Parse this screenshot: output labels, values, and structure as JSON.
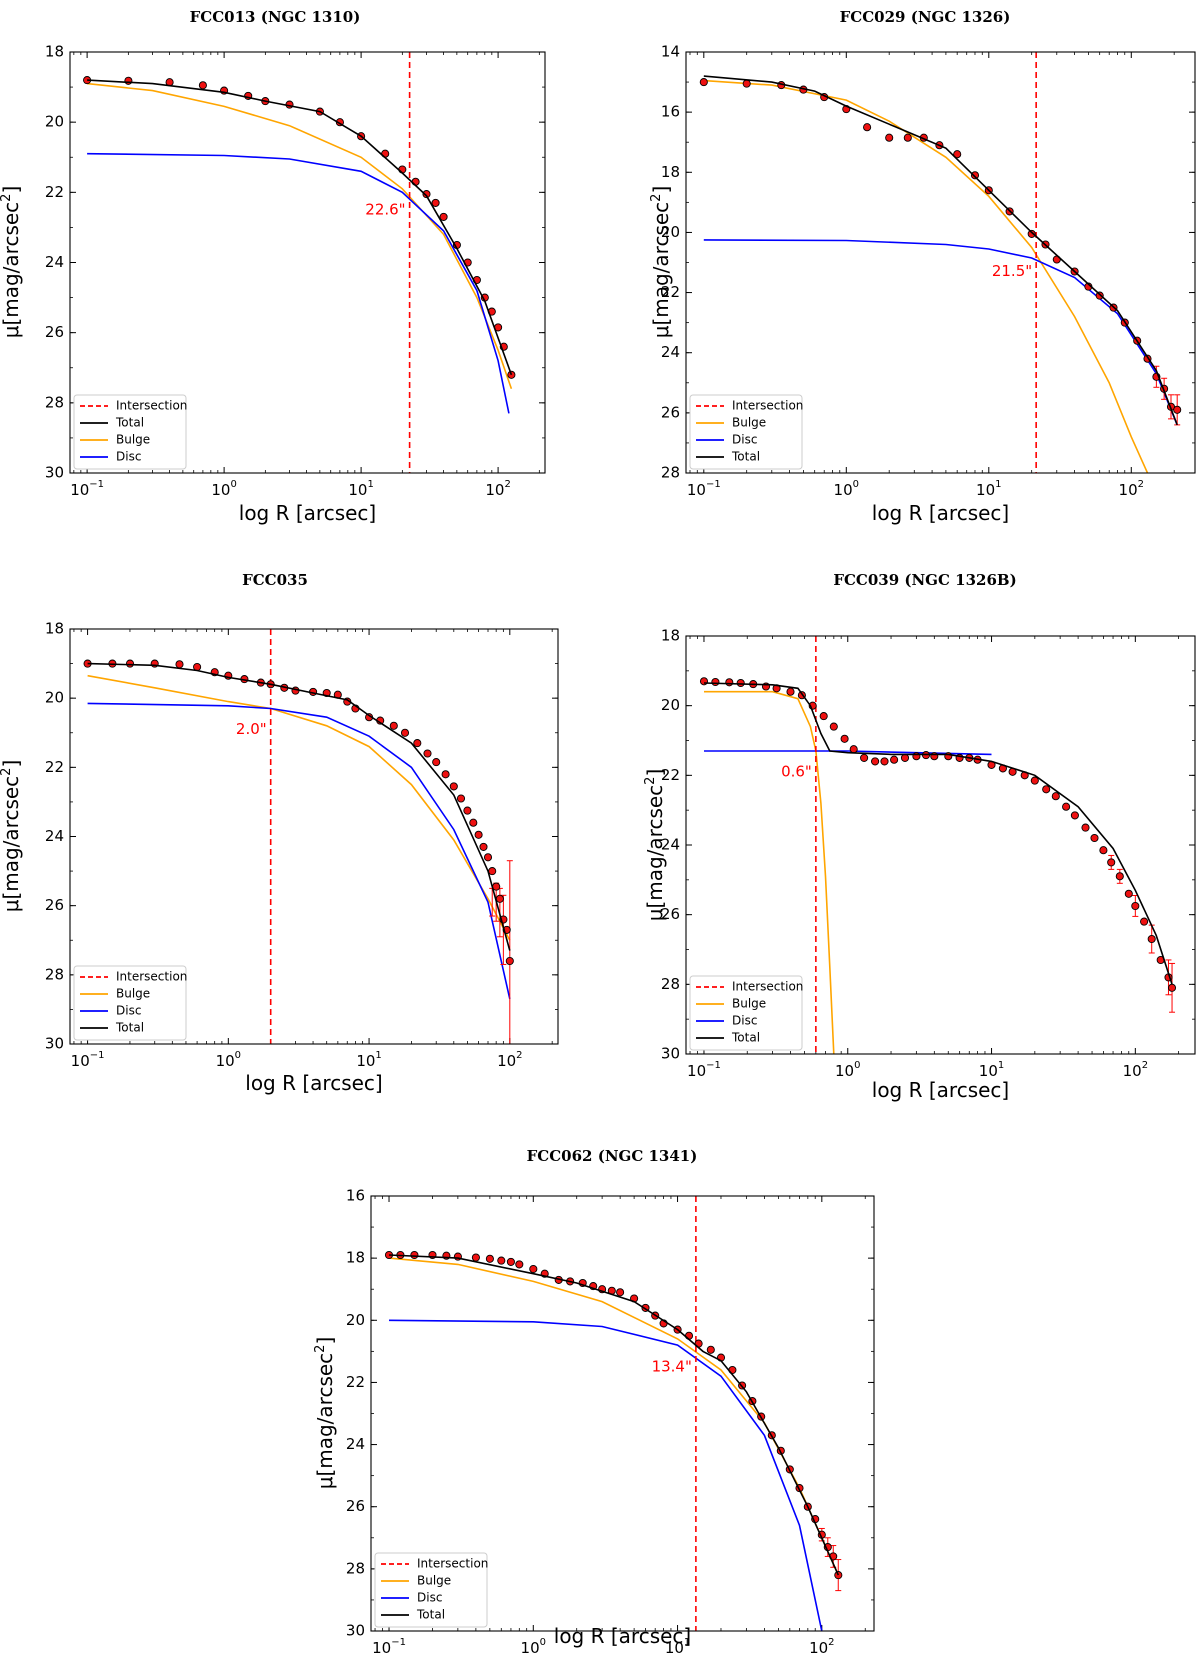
{
  "figure": {
    "x_label": "log R [arcsec]",
    "y_label": "μ[mag/arcsec",
    "y_label_sup": "2",
    "y_label_close": "]",
    "colors": {
      "intersection": "#ff0000",
      "total": "#000000",
      "bulge": "#ffa500",
      "disc": "#0000ff",
      "points": "#ee1111"
    }
  },
  "chart_data": [
    {
      "type": "line",
      "title": "FCC013 (NGC 1310)",
      "xscale": "log",
      "xlim": [
        0.075,
        220
      ],
      "ylim": [
        30,
        18
      ],
      "yticks": [
        18,
        20,
        22,
        24,
        26,
        28,
        30
      ],
      "xticks": [
        0.1,
        1,
        10,
        100
      ],
      "xtick_labels": [
        {
          "base": "10",
          "exp": "−1"
        },
        {
          "base": "10",
          "exp": "0"
        },
        {
          "base": "10",
          "exp": "1"
        },
        {
          "base": "10",
          "exp": "2"
        }
      ],
      "legend_position": "lower-left",
      "legend": [
        "Intersection",
        "Total",
        "Bulge",
        "Disc"
      ],
      "intersection": {
        "r": 22.6,
        "label": "22.6\"",
        "label_mu": 22.5
      },
      "total": {
        "r": [
          0.1,
          0.3,
          1,
          2,
          5,
          10,
          20,
          30,
          50,
          80,
          125
        ],
        "mu": [
          18.8,
          18.9,
          19.15,
          19.4,
          19.7,
          20.4,
          21.45,
          22.1,
          23.6,
          25.1,
          27.2
        ]
      },
      "bulge": {
        "r": [
          0.1,
          0.3,
          1,
          3,
          10,
          20,
          40,
          70,
          100,
          125
        ],
        "mu": [
          18.9,
          19.1,
          19.55,
          20.1,
          21.0,
          21.9,
          23.2,
          25.0,
          26.5,
          27.6
        ]
      },
      "disc": {
        "r": [
          0.1,
          1,
          3,
          10,
          20,
          40,
          70,
          100,
          120
        ],
        "mu": [
          20.9,
          20.95,
          21.05,
          21.4,
          22.0,
          23.1,
          24.8,
          26.8,
          28.3
        ]
      },
      "points": {
        "r": [
          0.1,
          0.2,
          0.4,
          0.7,
          1,
          1.5,
          2,
          3,
          5,
          7,
          10,
          15,
          20,
          25,
          30,
          35,
          40,
          50,
          60,
          70,
          80,
          90,
          100,
          110,
          125
        ],
        "mu": [
          18.8,
          18.82,
          18.86,
          18.95,
          19.1,
          19.25,
          19.4,
          19.5,
          19.7,
          20.0,
          20.4,
          20.9,
          21.35,
          21.7,
          22.05,
          22.3,
          22.7,
          23.5,
          24.0,
          24.5,
          25.0,
          25.4,
          25.85,
          26.4,
          27.2
        ]
      },
      "error_bars": []
    },
    {
      "type": "line",
      "title": "FCC029 (NGC 1326)",
      "xscale": "log",
      "xlim": [
        0.075,
        280
      ],
      "ylim": [
        28,
        14
      ],
      "yticks": [
        14,
        16,
        18,
        20,
        22,
        24,
        26,
        28
      ],
      "xticks": [
        0.1,
        1,
        10,
        100
      ],
      "xtick_labels": [
        {
          "base": "10",
          "exp": "−1"
        },
        {
          "base": "10",
          "exp": "0"
        },
        {
          "base": "10",
          "exp": "1"
        },
        {
          "base": "10",
          "exp": "2"
        }
      ],
      "legend_position": "lower-left",
      "legend": [
        "Intersection",
        "Bulge",
        "Disc",
        "Total"
      ],
      "intersection": {
        "r": 21.5,
        "label": "21.5\"",
        "label_mu": 21.3
      },
      "total": {
        "r": [
          0.1,
          0.3,
          0.6,
          1,
          2,
          3,
          5,
          10,
          20,
          40,
          80,
          150,
          210
        ],
        "mu": [
          14.8,
          15.0,
          15.3,
          15.8,
          16.4,
          16.75,
          17.2,
          18.6,
          20.0,
          21.3,
          22.6,
          24.6,
          26.4
        ]
      },
      "bulge": {
        "r": [
          0.1,
          0.3,
          1,
          2,
          5,
          10,
          20,
          40,
          70,
          100,
          130
        ],
        "mu": [
          14.95,
          15.1,
          15.6,
          16.3,
          17.5,
          18.8,
          20.5,
          22.8,
          25.0,
          26.8,
          28.0
        ]
      },
      "disc": {
        "r": [
          0.1,
          1,
          5,
          10,
          20,
          40,
          80,
          150,
          210
        ],
        "mu": [
          20.25,
          20.27,
          20.4,
          20.55,
          20.85,
          21.5,
          22.7,
          24.7,
          26.4
        ]
      },
      "points": {
        "r": [
          0.1,
          0.2,
          0.35,
          0.5,
          0.7,
          1,
          1.4,
          2,
          2.7,
          3.5,
          4.5,
          6,
          8,
          10,
          14,
          20,
          25,
          30,
          40,
          50,
          60,
          75,
          90,
          110,
          130,
          150,
          170,
          190,
          210
        ],
        "mu": [
          15.0,
          15.05,
          15.1,
          15.25,
          15.5,
          15.9,
          16.5,
          16.85,
          16.85,
          16.85,
          17.1,
          17.4,
          18.1,
          18.6,
          19.3,
          20.05,
          20.4,
          20.9,
          21.3,
          21.8,
          22.1,
          22.5,
          23.0,
          23.6,
          24.2,
          24.8,
          25.2,
          25.8,
          25.9
        ]
      },
      "error_bars": [
        {
          "r": 150,
          "mu": 24.8,
          "err": 0.35
        },
        {
          "r": 170,
          "mu": 25.2,
          "err": 0.35
        },
        {
          "r": 190,
          "mu": 25.8,
          "err": 0.4
        },
        {
          "r": 210,
          "mu": 25.9,
          "err": 0.5
        }
      ]
    },
    {
      "type": "line",
      "title": "FCC035",
      "xscale": "log",
      "xlim": [
        0.075,
        220
      ],
      "ylim": [
        30,
        18
      ],
      "yticks": [
        18,
        20,
        22,
        24,
        26,
        28,
        30
      ],
      "xticks": [
        0.1,
        1,
        10,
        100
      ],
      "xtick_labels": [
        {
          "base": "10",
          "exp": "−1"
        },
        {
          "base": "10",
          "exp": "0"
        },
        {
          "base": "10",
          "exp": "1"
        },
        {
          "base": "10",
          "exp": "2"
        }
      ],
      "legend_position": "lower-left",
      "legend": [
        "Intersection",
        "Bulge",
        "Disc",
        "Total"
      ],
      "intersection": {
        "r": 2.0,
        "label": "2.0\"",
        "label_mu": 20.9
      },
      "total": {
        "r": [
          0.1,
          0.3,
          0.6,
          1,
          2,
          4,
          7,
          10,
          20,
          40,
          70,
          100
        ],
        "mu": [
          19.0,
          19.05,
          19.2,
          19.4,
          19.6,
          19.85,
          20.05,
          20.5,
          21.3,
          22.8,
          25.0,
          27.3
        ]
      },
      "bulge": {
        "r": [
          0.1,
          0.3,
          1,
          2,
          5,
          10,
          20,
          40,
          70,
          100
        ],
        "mu": [
          19.35,
          19.7,
          20.1,
          20.3,
          20.8,
          21.4,
          22.5,
          24.1,
          25.8,
          27.0
        ]
      },
      "disc": {
        "r": [
          0.1,
          1,
          2,
          5,
          10,
          20,
          40,
          70,
          100
        ],
        "mu": [
          20.15,
          20.22,
          20.3,
          20.55,
          21.1,
          22.0,
          23.8,
          25.9,
          28.7
        ]
      },
      "points": {
        "r": [
          0.1,
          0.15,
          0.2,
          0.3,
          0.45,
          0.6,
          0.8,
          1,
          1.3,
          1.7,
          2,
          2.5,
          3,
          4,
          5,
          6,
          7,
          8,
          10,
          12,
          15,
          18,
          22,
          26,
          30,
          35,
          40,
          45,
          50,
          55,
          60,
          65,
          70,
          75,
          80,
          85,
          90,
          95,
          100
        ],
        "mu": [
          19.0,
          19.0,
          19.0,
          19.0,
          19.02,
          19.1,
          19.25,
          19.35,
          19.45,
          19.55,
          19.6,
          19.7,
          19.78,
          19.82,
          19.85,
          19.9,
          20.1,
          20.3,
          20.55,
          20.65,
          20.8,
          21.0,
          21.3,
          21.6,
          21.85,
          22.2,
          22.55,
          22.9,
          23.25,
          23.6,
          23.95,
          24.3,
          24.6,
          25.0,
          25.45,
          25.8,
          26.4,
          26.7,
          27.6
        ]
      },
      "error_bars": [
        {
          "r": 75,
          "mu": 25.9,
          "err": 0.4
        },
        {
          "r": 80,
          "mu": 25.9,
          "err": 0.55
        },
        {
          "r": 85,
          "mu": 26.2,
          "err": 0.7
        },
        {
          "r": 90,
          "mu": 26.7,
          "err": 1.0
        },
        {
          "r": 100,
          "mu": 27.6,
          "err": 2.9
        }
      ]
    },
    {
      "type": "line",
      "title": "FCC039 (NGC 1326B)",
      "xscale": "log",
      "xlim": [
        0.075,
        260
      ],
      "ylim": [
        30,
        18
      ],
      "yticks": [
        18,
        20,
        22,
        24,
        26,
        28,
        30
      ],
      "xticks": [
        0.1,
        1,
        10,
        100
      ],
      "xtick_labels": [
        {
          "base": "10",
          "exp": "−1"
        },
        {
          "base": "10",
          "exp": "0"
        },
        {
          "base": "10",
          "exp": "1"
        },
        {
          "base": "10",
          "exp": "2"
        }
      ],
      "legend_position": "lower-left",
      "legend": [
        "Intersection",
        "Bulge",
        "Disc",
        "Total"
      ],
      "intersection": {
        "r": 0.6,
        "label": "0.6\"",
        "label_mu": 21.9
      },
      "total": {
        "r": [
          0.1,
          0.3,
          0.45,
          0.55,
          0.65,
          0.75,
          1,
          2,
          5,
          10,
          20,
          40,
          70,
          100,
          140,
          180
        ],
        "mu": [
          19.35,
          19.4,
          19.5,
          20.0,
          20.8,
          21.3,
          21.35,
          21.4,
          21.4,
          21.6,
          22.0,
          22.9,
          24.1,
          25.3,
          26.6,
          28.0
        ]
      },
      "bulge": {
        "r": [
          0.1,
          0.3,
          0.45,
          0.55,
          0.6,
          0.65,
          0.7,
          0.75,
          0.8
        ],
        "mu": [
          19.6,
          19.6,
          19.8,
          20.6,
          21.3,
          22.8,
          24.9,
          27.5,
          30.0
        ]
      },
      "disc": {
        "r": [
          0.1,
          1,
          3,
          10
        ],
        "mu": [
          21.3,
          21.3,
          21.35,
          21.4
        ]
      },
      "points": {
        "r": [
          0.1,
          0.12,
          0.15,
          0.18,
          0.22,
          0.27,
          0.32,
          0.4,
          0.48,
          0.57,
          0.68,
          0.8,
          0.95,
          1.1,
          1.3,
          1.55,
          1.8,
          2.1,
          2.5,
          3,
          3.5,
          4,
          5,
          6,
          7,
          8,
          10,
          12,
          14,
          17,
          20,
          24,
          28,
          33,
          38,
          45,
          52,
          60,
          68,
          78,
          90,
          100,
          115,
          130,
          150,
          170,
          180
        ],
        "mu": [
          19.3,
          19.32,
          19.33,
          19.35,
          19.38,
          19.45,
          19.5,
          19.6,
          19.7,
          20.0,
          20.3,
          20.6,
          20.95,
          21.25,
          21.5,
          21.6,
          21.6,
          21.55,
          21.5,
          21.45,
          21.42,
          21.45,
          21.45,
          21.5,
          21.5,
          21.55,
          21.7,
          21.8,
          21.9,
          22.0,
          22.15,
          22.4,
          22.6,
          22.9,
          23.15,
          23.5,
          23.8,
          24.15,
          24.5,
          24.9,
          25.4,
          25.75,
          26.2,
          26.7,
          27.3,
          27.8,
          28.1
        ]
      },
      "error_bars": [
        {
          "r": 68,
          "mu": 24.5,
          "err": 0.2
        },
        {
          "r": 78,
          "mu": 24.9,
          "err": 0.2
        },
        {
          "r": 100,
          "mu": 25.75,
          "err": 0.3
        },
        {
          "r": 130,
          "mu": 26.7,
          "err": 0.4
        },
        {
          "r": 170,
          "mu": 27.8,
          "err": 0.5
        },
        {
          "r": 180,
          "mu": 28.1,
          "err": 0.7
        }
      ]
    },
    {
      "type": "line",
      "title": "FCC062 (NGC 1341)",
      "xscale": "log",
      "xlim": [
        0.075,
        230
      ],
      "ylim": [
        30,
        16
      ],
      "yticks": [
        16,
        18,
        20,
        22,
        24,
        26,
        28,
        30
      ],
      "xticks": [
        0.1,
        1,
        10,
        100
      ],
      "xtick_labels": [
        {
          "base": "10",
          "exp": "−1"
        },
        {
          "base": "10",
          "exp": "0"
        },
        {
          "base": "10",
          "exp": "1"
        },
        {
          "base": "10",
          "exp": "2"
        }
      ],
      "legend_position": "lower-left",
      "legend": [
        "Intersection",
        "Bulge",
        "Disc",
        "Total"
      ],
      "intersection": {
        "r": 13.4,
        "label": "13.4\"",
        "label_mu": 21.5
      },
      "total": {
        "r": [
          0.1,
          0.3,
          1,
          2,
          5,
          10,
          15,
          20,
          30,
          50,
          80,
          130
        ],
        "mu": [
          17.9,
          18.0,
          18.5,
          18.8,
          19.4,
          20.3,
          21.0,
          21.3,
          22.3,
          24.1,
          26.0,
          28.2
        ]
      },
      "bulge": {
        "r": [
          0.1,
          0.3,
          1,
          3,
          10,
          20,
          40,
          70,
          100,
          130
        ],
        "mu": [
          18.0,
          18.2,
          18.75,
          19.4,
          20.6,
          21.6,
          23.3,
          25.4,
          27.0,
          28.2
        ]
      },
      "disc": {
        "r": [
          0.1,
          1,
          3,
          10,
          20,
          40,
          70,
          100
        ],
        "mu": [
          20.0,
          20.05,
          20.2,
          20.8,
          21.8,
          23.7,
          26.6,
          30.0
        ]
      },
      "points": {
        "r": [
          0.1,
          0.12,
          0.15,
          0.2,
          0.25,
          0.3,
          0.4,
          0.5,
          0.6,
          0.7,
          0.8,
          1,
          1.2,
          1.5,
          1.8,
          2.2,
          2.6,
          3,
          3.5,
          4,
          5,
          6,
          7,
          8,
          10,
          12,
          14,
          17,
          20,
          24,
          28,
          33,
          38,
          45,
          52,
          60,
          70,
          80,
          90,
          100,
          110,
          120,
          130
        ],
        "mu": [
          17.9,
          17.9,
          17.9,
          17.9,
          17.92,
          17.95,
          17.98,
          18.02,
          18.08,
          18.12,
          18.2,
          18.35,
          18.5,
          18.7,
          18.75,
          18.8,
          18.9,
          19.0,
          19.05,
          19.1,
          19.3,
          19.6,
          19.85,
          20.1,
          20.3,
          20.5,
          20.75,
          20.95,
          21.2,
          21.6,
          22.1,
          22.6,
          23.1,
          23.7,
          24.2,
          24.8,
          25.4,
          26.0,
          26.4,
          26.9,
          27.3,
          27.6,
          28.2
        ]
      },
      "error_bars": [
        {
          "r": 100,
          "mu": 26.9,
          "err": 0.2
        },
        {
          "r": 110,
          "mu": 27.3,
          "err": 0.3
        },
        {
          "r": 120,
          "mu": 27.6,
          "err": 0.35
        },
        {
          "r": 130,
          "mu": 28.2,
          "err": 0.5
        }
      ]
    }
  ]
}
